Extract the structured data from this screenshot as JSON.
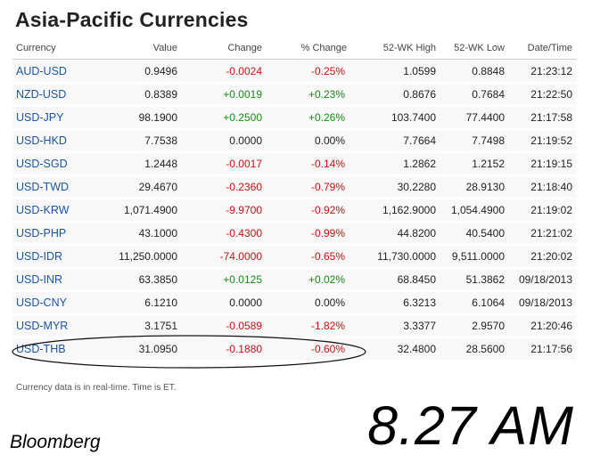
{
  "title": "Asia-Pacific Currencies",
  "columns": [
    "Currency",
    "Value",
    "Change",
    "% Change",
    "52-WK High",
    "52-WK Low",
    "Date/Time"
  ],
  "rows": [
    {
      "name": "AUD-USD",
      "value": "0.9496",
      "change": "-0.0024",
      "pct": "-0.25%",
      "high": "1.0599",
      "low": "0.8848",
      "time": "21:23:12",
      "dir": "neg"
    },
    {
      "name": "NZD-USD",
      "value": "0.8389",
      "change": "+0.0019",
      "pct": "+0.23%",
      "high": "0.8676",
      "low": "0.7684",
      "time": "21:22:50",
      "dir": "pos"
    },
    {
      "name": "USD-JPY",
      "value": "98.1900",
      "change": "+0.2500",
      "pct": "+0.26%",
      "high": "103.7400",
      "low": "77.4400",
      "time": "21:17:58",
      "dir": "pos"
    },
    {
      "name": "USD-HKD",
      "value": "7.7538",
      "change": "0.0000",
      "pct": "0.00%",
      "high": "7.7664",
      "low": "7.7498",
      "time": "21:19:52",
      "dir": "neu"
    },
    {
      "name": "USD-SGD",
      "value": "1.2448",
      "change": "-0.0017",
      "pct": "-0.14%",
      "high": "1.2862",
      "low": "1.2152",
      "time": "21:19:15",
      "dir": "neg"
    },
    {
      "name": "USD-TWD",
      "value": "29.4670",
      "change": "-0.2360",
      "pct": "-0.79%",
      "high": "30.2280",
      "low": "28.9130",
      "time": "21:18:40",
      "dir": "neg"
    },
    {
      "name": "USD-KRW",
      "value": "1,071.4900",
      "change": "-9.9700",
      "pct": "-0.92%",
      "high": "1,162.9000",
      "low": "1,054.4900",
      "time": "21:19:02",
      "dir": "neg"
    },
    {
      "name": "USD-PHP",
      "value": "43.1000",
      "change": "-0.4300",
      "pct": "-0.99%",
      "high": "44.8200",
      "low": "40.5400",
      "time": "21:21:02",
      "dir": "neg"
    },
    {
      "name": "USD-IDR",
      "value": "11,250.0000",
      "change": "-74.0000",
      "pct": "-0.65%",
      "high": "11,730.0000",
      "low": "9,511.0000",
      "time": "21:20:02",
      "dir": "neg"
    },
    {
      "name": "USD-INR",
      "value": "63.3850",
      "change": "+0.0125",
      "pct": "+0.02%",
      "high": "68.8450",
      "low": "51.3862",
      "time": "09/18/2013",
      "dir": "pos"
    },
    {
      "name": "USD-CNY",
      "value": "6.1210",
      "change": "0.0000",
      "pct": "0.00%",
      "high": "6.3213",
      "low": "6.1064",
      "time": "09/18/2013",
      "dir": "neu"
    },
    {
      "name": "USD-MYR",
      "value": "3.1751",
      "change": "-0.0589",
      "pct": "-1.82%",
      "high": "3.3377",
      "low": "2.9570",
      "time": "21:20:46",
      "dir": "neg"
    },
    {
      "name": "USD-THB",
      "value": "31.0950",
      "change": "-0.1880",
      "pct": "-0.60%",
      "high": "32.4800",
      "low": "28.5600",
      "time": "21:17:56",
      "dir": "neg"
    }
  ],
  "footnote": "Currency data is in real-time. Time is ET.",
  "source": "Bloomberg",
  "clock": "8.27 AM",
  "colors": {
    "link": "#1a55a8",
    "negative": "#cc1111",
    "positive": "#1a8a1a",
    "neutral": "#222222"
  }
}
